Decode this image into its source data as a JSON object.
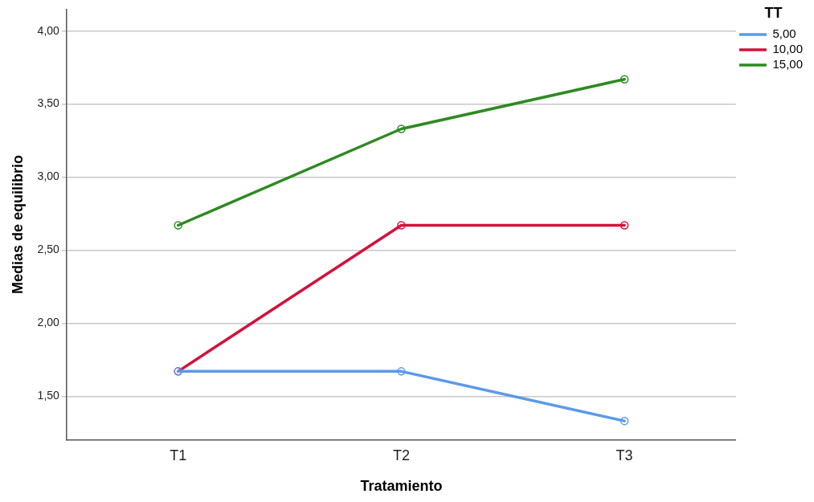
{
  "chart_data": {
    "type": "line",
    "xlabel": "Tratamiento",
    "ylabel": "Medias de equilibrio",
    "legend_title": "TT",
    "categories": [
      "T1",
      "T2",
      "T3"
    ],
    "series": [
      {
        "name": "5,00",
        "color": "#5b9ae8",
        "values": [
          1.67,
          1.67,
          1.33
        ]
      },
      {
        "name": "10,00",
        "color": "#d2123c",
        "values": [
          1.67,
          2.67,
          2.67
        ]
      },
      {
        "name": "15,00",
        "color": "#2e8a22",
        "values": [
          2.67,
          3.33,
          3.67
        ]
      }
    ],
    "ylim": [
      1.2,
      4.15
    ],
    "yticks": [
      {
        "value": 1.5,
        "label": "1,50"
      },
      {
        "value": 2,
        "label": "2,00"
      },
      {
        "value": 2.5,
        "label": "2,50"
      },
      {
        "value": 3,
        "label": "3,00"
      },
      {
        "value": 3.5,
        "label": "3,50"
      },
      {
        "value": 4,
        "label": "4,00"
      }
    ],
    "grid": "y",
    "legend": "top right",
    "marker": "circle",
    "line_style": "solid"
  }
}
